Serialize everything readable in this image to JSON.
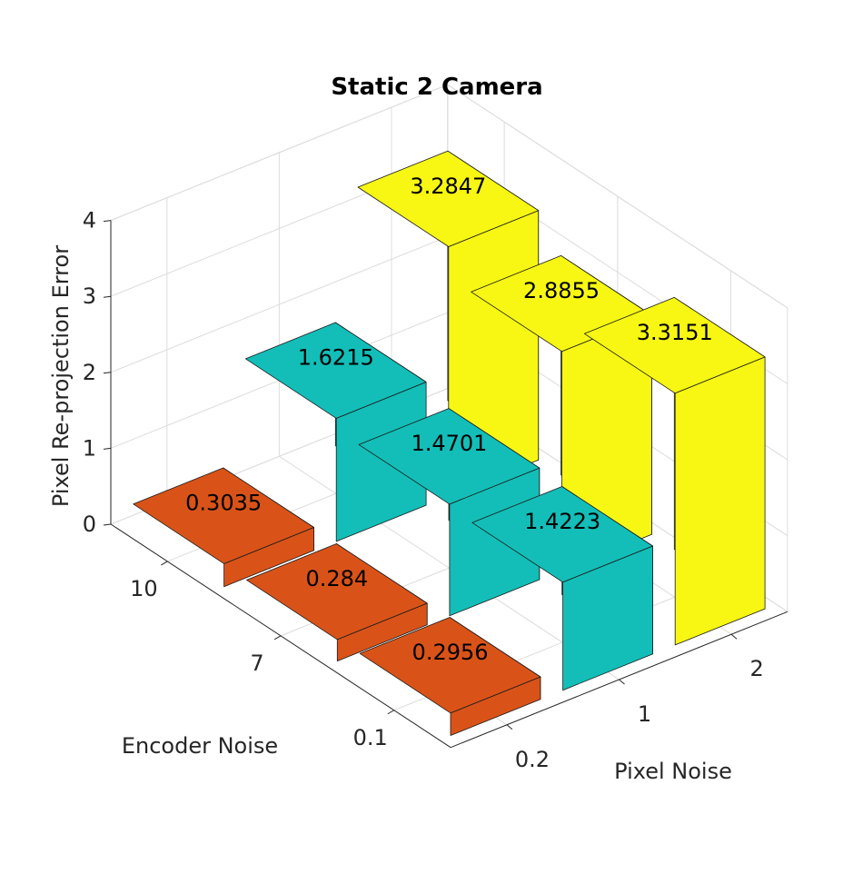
{
  "chart_data": {
    "type": "bar3d",
    "title": "Static 2 Camera",
    "xlabel": "Pixel Noise",
    "ylabel": "Encoder Noise",
    "zlabel": "Pixel Re-projection Error",
    "x_categories": [
      "0.2",
      "1",
      "2"
    ],
    "y_categories": [
      "0.1",
      "7",
      "10"
    ],
    "zlim": [
      0,
      4
    ],
    "z_ticks": [
      "0",
      "1",
      "2",
      "3",
      "4"
    ],
    "grid": true,
    "series": [
      {
        "encoder_noise": "10",
        "color": "#D95319",
        "values": [
          0.3035,
          1.6215,
          3.2847
        ],
        "labels": [
          "0.3035",
          "1.6215",
          "3.2847"
        ]
      },
      {
        "encoder_noise": "7",
        "color": "#D95319",
        "values": [
          0.284,
          1.4701,
          2.8855
        ],
        "labels": [
          "0.284",
          "1.4701",
          "2.8855"
        ]
      },
      {
        "encoder_noise": "0.1",
        "color": "#D95319",
        "values": [
          0.2956,
          1.4223,
          3.3151
        ],
        "labels": [
          "0.2956",
          "1.4223",
          "3.3151"
        ]
      }
    ],
    "colors_by_pixel_noise": {
      "0.2": "#D95319",
      "1": "#13BEB8",
      "2": "#F7F713"
    }
  }
}
